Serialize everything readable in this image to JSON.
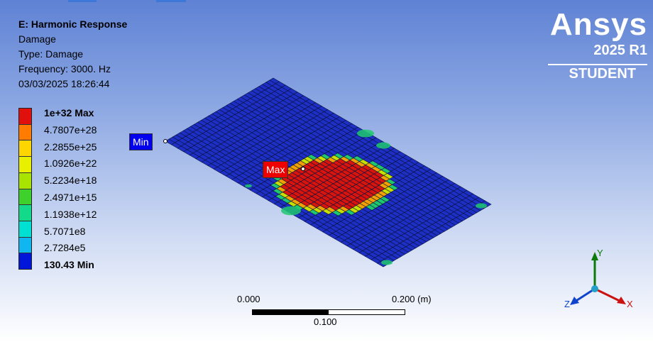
{
  "info": {
    "title": "E: Harmonic Response",
    "result": "Damage",
    "type": "Type: Damage",
    "frequency": "Frequency: 3000. Hz",
    "timestamp": "03/03/2025 18:26:44"
  },
  "legend": {
    "labels": [
      "1e+32 Max",
      "4.7807e+28",
      "2.2855e+25",
      "1.0926e+22",
      "5.2234e+18",
      "2.4971e+15",
      "1.1938e+12",
      "5.7071e8",
      "2.7284e5",
      "130.43 Min"
    ],
    "colors": [
      "#e0100c",
      "#ff7c00",
      "#ffd500",
      "#e8f000",
      "#a8e400",
      "#3fd12b",
      "#13d98a",
      "#00e0d2",
      "#10b6f0",
      "#0016d8"
    ]
  },
  "logo": {
    "brand": "Ansys",
    "release": "2025 R1",
    "edition": "STUDENT"
  },
  "probes": {
    "min": {
      "label": "Min",
      "color": "#0000ee"
    },
    "max": {
      "label": "Max",
      "color": "#ee0000"
    }
  },
  "scale": {
    "left": "0.000",
    "right": "0.200 (m)",
    "middle": "0.100"
  },
  "triad": {
    "x": "X",
    "y": "Y",
    "z": "Z"
  },
  "mesh_colors": {
    "base": "#1d2fc4",
    "line": "#0a1240",
    "hot": "#d8140c",
    "warm": "#f2a100",
    "mid": "#c8e000",
    "cool": "#1fc870"
  }
}
